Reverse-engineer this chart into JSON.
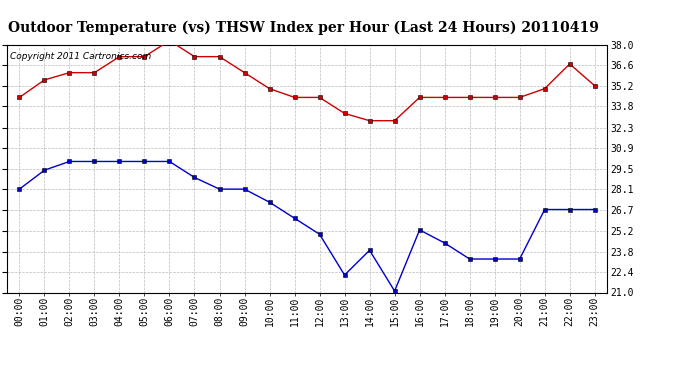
{
  "title": "Outdoor Temperature (vs) THSW Index per Hour (Last 24 Hours) 20110419",
  "copyright_text": "Copyright 2011 Cartronics.com",
  "x_labels": [
    "00:00",
    "01:00",
    "02:00",
    "03:00",
    "04:00",
    "05:00",
    "06:00",
    "07:00",
    "08:00",
    "09:00",
    "10:00",
    "11:00",
    "12:00",
    "13:00",
    "14:00",
    "15:00",
    "16:00",
    "17:00",
    "18:00",
    "19:00",
    "20:00",
    "21:00",
    "22:00",
    "23:00"
  ],
  "red_data": [
    34.4,
    35.6,
    36.1,
    36.1,
    37.2,
    37.2,
    38.3,
    37.2,
    37.2,
    36.1,
    35.0,
    34.4,
    34.4,
    33.3,
    32.8,
    32.8,
    34.4,
    34.4,
    34.4,
    34.4,
    34.4,
    35.0,
    36.7,
    35.2
  ],
  "blue_data": [
    28.1,
    29.4,
    30.0,
    30.0,
    30.0,
    30.0,
    30.0,
    28.9,
    28.1,
    28.1,
    27.2,
    26.1,
    25.0,
    22.2,
    23.9,
    21.1,
    25.3,
    24.4,
    23.3,
    23.3,
    23.3,
    26.7,
    26.7,
    26.7
  ],
  "red_color": "#cc0000",
  "blue_color": "#0000cc",
  "bg_color": "#ffffff",
  "grid_color": "#bbbbbb",
  "y_ticks": [
    21.0,
    22.4,
    23.8,
    25.2,
    26.7,
    28.1,
    29.5,
    30.9,
    32.3,
    33.8,
    35.2,
    36.6,
    38.0
  ],
  "y_min": 21.0,
  "y_max": 38.0,
  "title_fontsize": 10,
  "copyright_fontsize": 6.5,
  "tick_fontsize": 7,
  "marker_size": 2.5,
  "line_width": 1.0
}
